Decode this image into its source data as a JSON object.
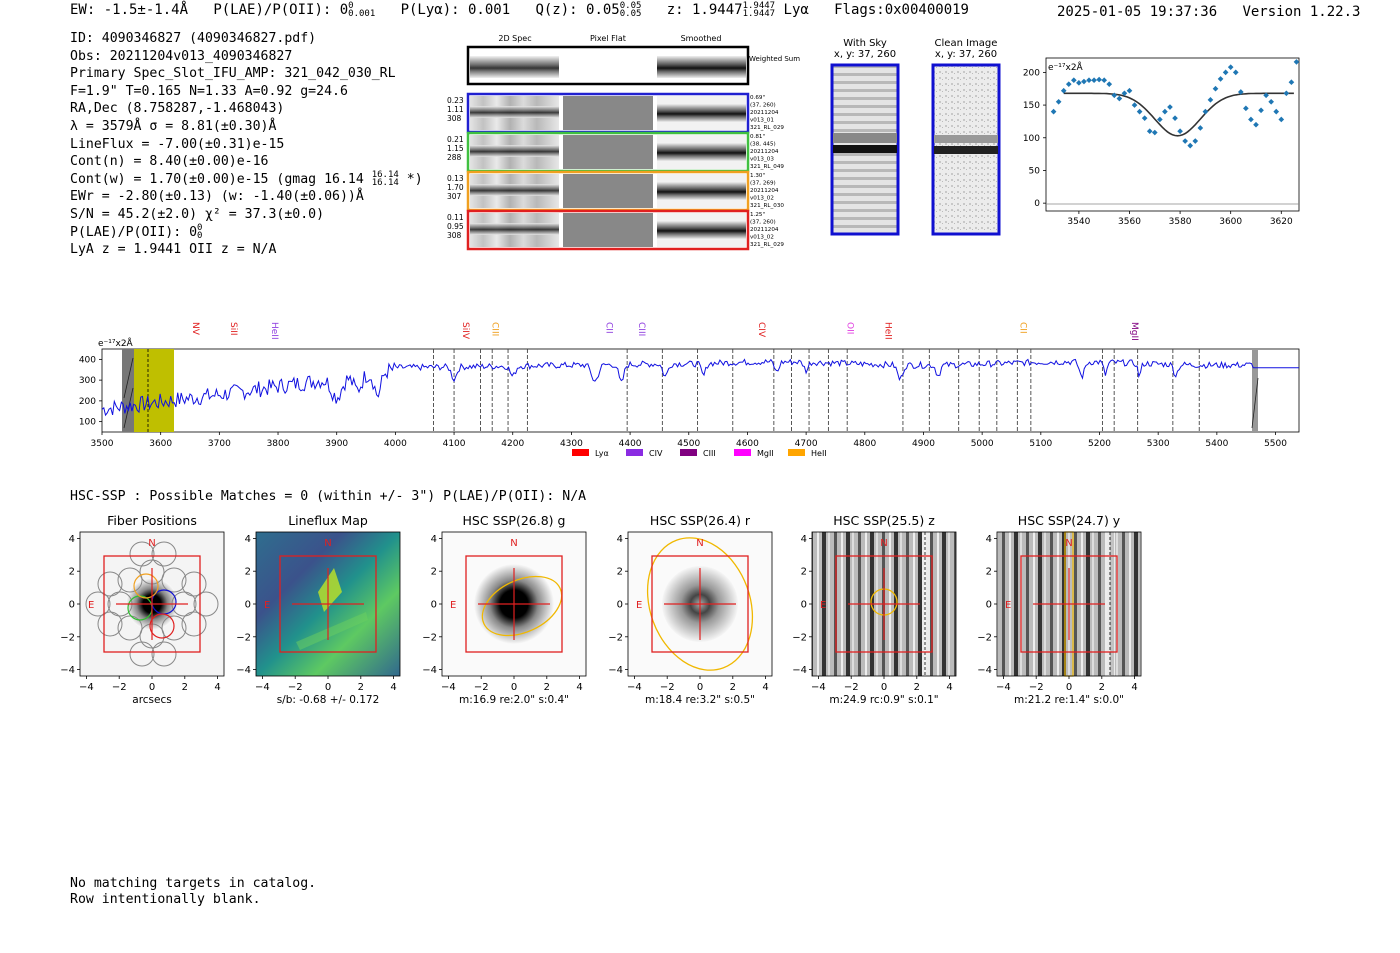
{
  "header": {
    "ew": "EW: -1.5±-1.4Å",
    "plae_label": "P(LAE)/P(OII): 0",
    "plae_sup": "0",
    "plae_sub": "0.001",
    "plya": "P(Lyα): 0.001",
    "qz_label": "Q(z): 0.05",
    "qz_sup": "0.05",
    "qz_sub": "0.05",
    "z_label": "z: 1.9447",
    "z_sup": "1.9447",
    "z_sub": "1.9447",
    "z_line": "Lyα",
    "flags": "Flags:0x00400019",
    "datetime": "2025-01-05 19:37:36",
    "version": "Version 1.22.3"
  },
  "info": {
    "id": "ID: 4090346827 (4090346827.pdf)",
    "obs": "Obs: 20211204v013_4090346827",
    "primary": "Primary Spec_Slot_IFU_AMP: 321_042_030_RL",
    "params": "F=1.9\"  T=0.165  N=1.33  A=0.92  g=24.6",
    "radec": "RA,Dec (8.758287,-1.468043)",
    "lambda": "λ = 3579Å  σ = 8.81(±0.30)Å",
    "lineflux": "LineFlux = -7.00(±0.31)e-15",
    "contn": "Cont(n) = 8.40(±0.00)e-16",
    "contw": "Cont(w) = 1.70(±0.00)e-15 (gmag 16.14",
    "contw_sup": "16.14",
    "contw_sub": "16.14",
    "contw_end": "*)",
    "ewr": "EWr = -2.80(±0.13) (w: -1.40(±0.06))Å",
    "sn": "S/N = 45.2(±2.0)  χ² = 37.3(±0.0)",
    "plae": "P(LAE)/P(OII): 0",
    "plae_sup": "0",
    "plae_sub": "0",
    "lyaz": "LyA z = 1.9441  OII z = N/A"
  },
  "cutouts": {
    "col_2dspec": "2D Spec",
    "col_pixflat": "Pixel Flat",
    "col_smoothed": "Smoothed",
    "weighted_sum": "Weighted Sum",
    "rows": [
      {
        "l1": "0.23",
        "l2": "1.11",
        "l3": "308",
        "r1": "0.69\"",
        "r2": "(37, 260)",
        "r3": "20211204",
        "r4": "v013_01",
        "r5": "321_RL_029",
        "color": "#2020d0"
      },
      {
        "l1": "0.21",
        "l2": "1.15",
        "l3": "288",
        "r1": "0.81\"",
        "r2": "(38, 445)",
        "r3": "20211204",
        "r4": "v013_03",
        "r5": "321_RL_049",
        "color": "#40c040"
      },
      {
        "l1": "0.13",
        "l2": "1.70",
        "l3": "307",
        "r1": "1.30\"",
        "r2": "(37, 269)",
        "r3": "20211204",
        "r4": "v013_02",
        "r5": "321_RL_030",
        "color": "#f0a020"
      },
      {
        "l1": "0.11",
        "l2": "0.95",
        "l3": "308",
        "r1": "1.25\"",
        "r2": "(37, 260)",
        "r3": "20211204",
        "r4": "v013_02",
        "r5": "321_RL_029",
        "color": "#e02020"
      }
    ]
  },
  "sky": {
    "with_sky_title": "With Sky",
    "with_sky_xy": "x, y: 37, 260",
    "clean_title": "Clean Image",
    "clean_xy": "x, y: 37, 260"
  },
  "zoom_plot": {
    "unit_label": "e⁻¹⁷x2Å",
    "yticks": [
      "0",
      "50",
      "100",
      "150",
      "200"
    ],
    "xticks": [
      "3540",
      "3560",
      "3580",
      "3600",
      "3620"
    ]
  },
  "spectrum": {
    "unit_label": "e⁻¹⁷x2Å",
    "yticks": [
      "100",
      "200",
      "300",
      "400"
    ],
    "xticks": [
      "3500",
      "3600",
      "3700",
      "3800",
      "3900",
      "4000",
      "4100",
      "4200",
      "4300",
      "4400",
      "4500",
      "4600",
      "4700",
      "4800",
      "4900",
      "5000",
      "5100",
      "5200",
      "5300",
      "5400",
      "5500"
    ],
    "lines": [
      {
        "label": "NV",
        "color": "#e02020"
      },
      {
        "label": "SiII",
        "color": "#e02020"
      },
      {
        "label": "HeII",
        "color": "#9040e0"
      },
      {
        "label": "SiIV",
        "color": "#e02020"
      },
      {
        "label": "CIII",
        "color": "#f0a020"
      },
      {
        "label": "CII",
        "color": "#9040e0"
      },
      {
        "label": "CIII",
        "color": "#9040e0"
      },
      {
        "label": "CIV",
        "color": "#e02020"
      },
      {
        "label": "OII",
        "color": "#e040e0"
      },
      {
        "label": "HeII",
        "color": "#e02020"
      },
      {
        "label": "CII",
        "color": "#f0a020"
      },
      {
        "label": "MgII",
        "color": "#800080"
      }
    ],
    "legend": [
      {
        "label": "Lyα",
        "color": "#ff0000"
      },
      {
        "label": "CIV",
        "color": "#8a2be2"
      },
      {
        "label": "CIII",
        "color": "#800080"
      },
      {
        "label": "MgII",
        "color": "#ff00ff"
      },
      {
        "label": "HeII",
        "color": "#ffa500"
      }
    ]
  },
  "hsc": {
    "title": "HSC-SSP : Possible Matches = 0 (within +/- 3\")  P(LAE)/P(OII): N/A",
    "panels": [
      {
        "title": "Fiber Positions",
        "caption": "arcsecs"
      },
      {
        "title": "Lineflux Map",
        "caption": "s/b: -0.68 +/- 0.172"
      },
      {
        "title": "HSC SSP(26.8) g",
        "caption": "m:16.9  re:2.0\"  s:0.4\""
      },
      {
        "title": "HSC SSP(26.4) r",
        "caption": "m:18.4  re:3.2\"  s:0.5\""
      },
      {
        "title": "HSC SSP(25.5) z",
        "caption": "m:24.9  rc:0.9\"  s:0.1\""
      },
      {
        "title": "HSC SSP(24.7) y",
        "caption": "m:21.2  re:1.4\"  s:0.0\""
      }
    ],
    "ticks": [
      "−4",
      "−2",
      "0",
      "2",
      "4"
    ],
    "north": "N",
    "east": "E"
  },
  "footer": {
    "line1": "No matching targets in catalog.",
    "line2": "Row intentionally blank."
  }
}
